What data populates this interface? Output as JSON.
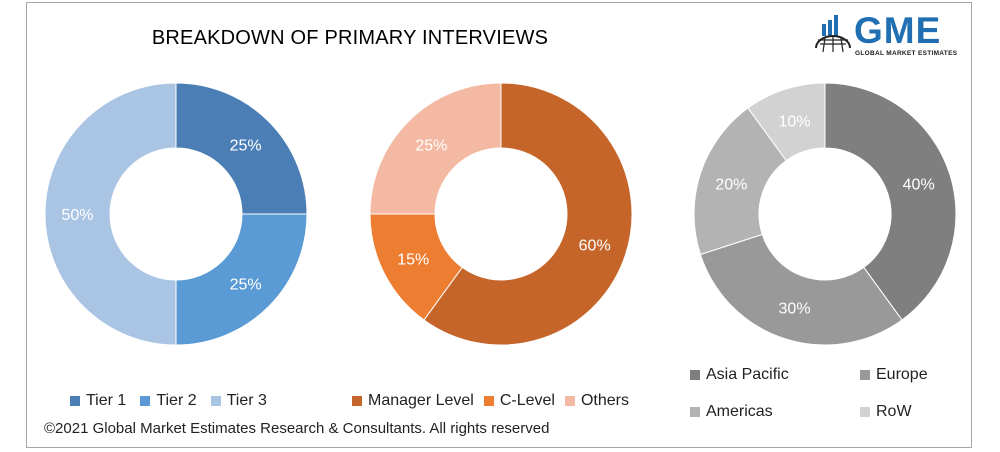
{
  "title": "BREAKDOWN OF PRIMARY INTERVIEWS",
  "footer": "©2021 Global Market Estimates Research & Consultants. All rights reserved",
  "logo": {
    "text": "GME",
    "subtitle": "GLOBAL MARKET ESTIMATES",
    "icon": "globe-bars-icon"
  },
  "chart_data": [
    {
      "type": "pie",
      "donut": true,
      "slices": [
        {
          "label": "Tier 1",
          "value": 25,
          "display": "25%",
          "color": "#4a7eb5"
        },
        {
          "label": "Tier 2",
          "value": 25,
          "display": "25%",
          "color": "#5b9bd5"
        },
        {
          "label": "Tier 3",
          "value": 50,
          "display": "50%",
          "color": "#aac4e4"
        }
      ]
    },
    {
      "type": "pie",
      "donut": true,
      "slices": [
        {
          "label": "Manager Level",
          "value": 60,
          "display": "60%",
          "color": "#c5652a"
        },
        {
          "label": "C-Level",
          "value": 15,
          "display": "15%",
          "color": "#ed7d31"
        },
        {
          "label": "Others",
          "value": 25,
          "display": "25%",
          "color": "#f4b9a2"
        }
      ]
    },
    {
      "type": "pie",
      "donut": true,
      "slices": [
        {
          "label": "Asia Pacific",
          "value": 40,
          "display": "40%",
          "color": "#7f7f7f"
        },
        {
          "label": "Europe",
          "value": 30,
          "display": "30%",
          "color": "#999999"
        },
        {
          "label": "Americas",
          "value": 20,
          "display": "20%",
          "color": "#b3b3b3"
        },
        {
          "label": "RoW",
          "value": 10,
          "display": "10%",
          "color": "#d2d2d2"
        }
      ]
    }
  ]
}
